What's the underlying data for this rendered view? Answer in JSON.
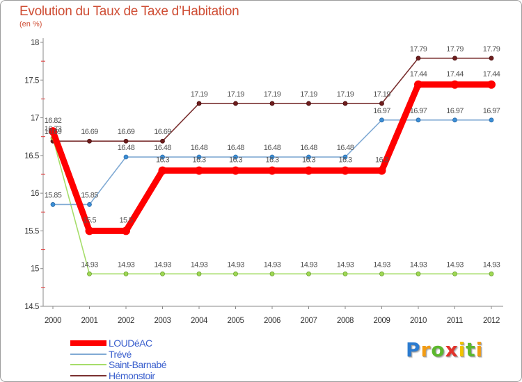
{
  "chart_data": {
    "type": "line",
    "title": "Evolution du Taux de Taxe d’Habitation",
    "subtitle": "(en %)",
    "xlabel": "",
    "ylabel": "",
    "categories": [
      "2000",
      "2001",
      "2002",
      "2003",
      "2004",
      "2005",
      "2006",
      "2007",
      "2008",
      "2009",
      "2010",
      "2011",
      "2012"
    ],
    "ylim": [
      14.5,
      18
    ],
    "yticks": [
      14.5,
      15,
      15.5,
      16,
      16.5,
      17,
      17.5,
      18
    ],
    "grid": false,
    "legend_position": "bottom-left",
    "series": [
      {
        "name": "LOUDéAC",
        "color": "#ff0000",
        "point_color": "#ff0000",
        "values": [
          16.82,
          15.5,
          15.5,
          16.3,
          16.3,
          16.3,
          16.3,
          16.3,
          16.3,
          16.3,
          17.44,
          17.44,
          17.44
        ]
      },
      {
        "name": "Trévé",
        "color": "#80aad4",
        "point_color": "#3c8fd6",
        "values": [
          15.85,
          15.85,
          16.48,
          16.48,
          16.48,
          16.48,
          16.48,
          16.48,
          16.48,
          16.97,
          16.97,
          16.97,
          16.97
        ]
      },
      {
        "name": "Saint-Barnabé",
        "color": "#a6dd6a",
        "point_color": "#9ed852",
        "values": [
          16.73,
          14.93,
          14.93,
          14.93,
          14.93,
          14.93,
          14.93,
          14.93,
          14.93,
          14.93,
          14.93,
          14.93,
          14.93
        ]
      },
      {
        "name": "Hémonstoir",
        "color": "#7a3030",
        "point_color": "#6e1c1c",
        "values": [
          16.69,
          16.69,
          16.69,
          16.69,
          17.19,
          17.19,
          17.19,
          17.19,
          17.19,
          17.19,
          17.79,
          17.79,
          17.79
        ]
      }
    ]
  },
  "logo": "Proxiti",
  "logo_colors": [
    "#2b7bd0",
    "#f39c12",
    "#5cb82e",
    "#e2332b",
    "#f2c400",
    "#5cb82e",
    "#f39c12"
  ]
}
